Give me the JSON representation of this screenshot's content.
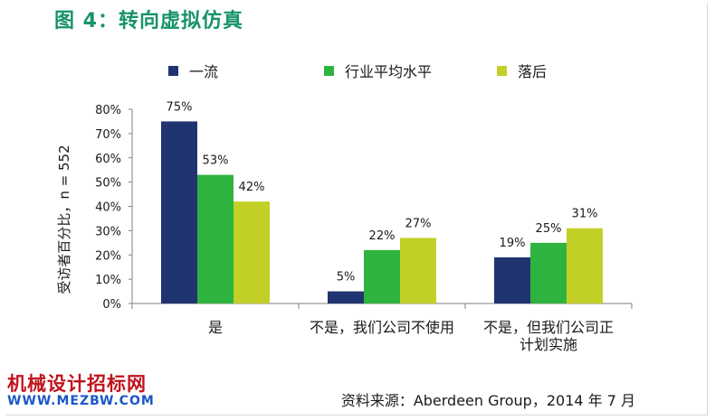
{
  "title": "图 4：转向虚拟仿真",
  "source": "资料来源：Aberdeen Group，2014 年 7 月",
  "watermark": {
    "line1": "机械设计招标网",
    "line2": "WWW.MEZBW.COM"
  },
  "colors": {
    "title": "#17936b",
    "watermark_red": "#c0131c",
    "watermark_blue": "#1a56c8"
  },
  "chart_data": {
    "type": "bar",
    "title": "",
    "xlabel": "",
    "ylabel": "受访者百分比，n = 552",
    "ylim": [
      0,
      80
    ],
    "yticks": [
      "0%",
      "10%",
      "20%",
      "30%",
      "40%",
      "50%",
      "60%",
      "70%",
      "80%"
    ],
    "yticks_values": [
      0,
      10,
      20,
      30,
      40,
      50,
      60,
      70,
      80
    ],
    "categories": [
      [
        "是"
      ],
      [
        "不是，我们公司不使用"
      ],
      [
        "不是，但我们公司正",
        "计划实施"
      ]
    ],
    "series": [
      {
        "name": "一流",
        "color": "#1f3470",
        "values": [
          75,
          5,
          19
        ],
        "labels": [
          "75%",
          "5%",
          "19%"
        ]
      },
      {
        "name": "行业平均水平",
        "color": "#2fb33f",
        "values": [
          53,
          22,
          25
        ],
        "labels": [
          "53%",
          "22%",
          "25%"
        ]
      },
      {
        "name": "落后",
        "color": "#c2cf26",
        "values": [
          42,
          27,
          31
        ],
        "labels": [
          "42%",
          "27%",
          "31%"
        ]
      }
    ],
    "legend_position": "top",
    "grid": false
  }
}
